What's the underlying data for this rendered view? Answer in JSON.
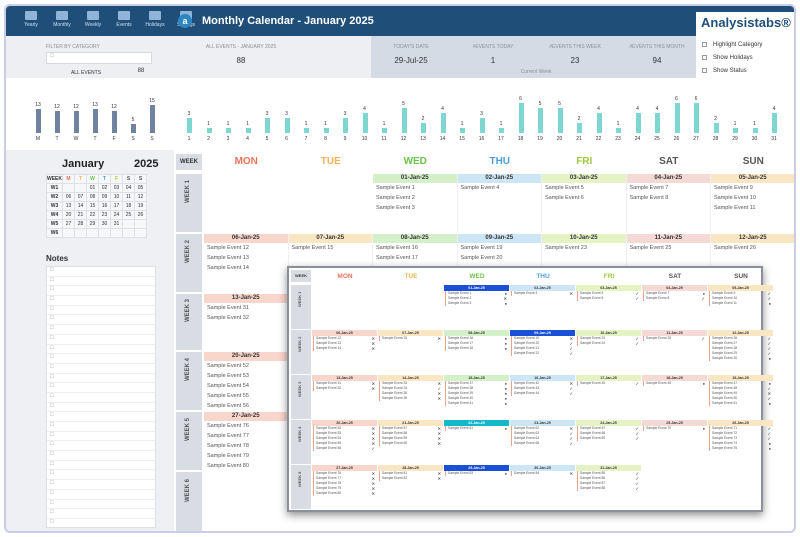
{
  "nav": {
    "items": [
      "Yearly",
      "Monthly",
      "Weekly",
      "Events",
      "Holidays",
      "Settings"
    ]
  },
  "header": {
    "title": "Monthly Calendar - January 2025",
    "brand": "Analysistabs®",
    "logo_letter": "a"
  },
  "filter": {
    "category_label": "FILTER BY CATEGORY",
    "all_events_label": "ALL EVENTS",
    "all_events_value": "88",
    "month_events_label": "ALL EVENTS - JANUARY 2025",
    "month_events_value": "88",
    "today_label": "TODAY'S DATE",
    "today_value": "29-Jul-25",
    "events_today_label": "#EVENTS TODAY",
    "events_today_value": "1",
    "events_week_label": "#EVENTS THIS WEEK",
    "events_week_value": "23",
    "events_month_label": "#EVENTS THIS MONTH",
    "events_month_value": "94",
    "current_week": "Current Week"
  },
  "options": [
    "Highlight Category",
    "Show Holidays",
    "Show Status"
  ],
  "weekday_chart": {
    "values": [
      13,
      12,
      12,
      13,
      12,
      5,
      15
    ],
    "labels": [
      "M",
      "T",
      "W",
      "T",
      "F",
      "S",
      "S"
    ]
  },
  "daily_chart": {
    "values": [
      3,
      1,
      1,
      1,
      3,
      3,
      1,
      1,
      3,
      4,
      1,
      5,
      2,
      4,
      1,
      3,
      1,
      6,
      5,
      5,
      2,
      4,
      1,
      4,
      4,
      6,
      6,
      2,
      1,
      1,
      4
    ],
    "labels": [
      "1",
      "2",
      "3",
      "4",
      "5",
      "6",
      "7",
      "8",
      "9",
      "10",
      "11",
      "12",
      "13",
      "14",
      "15",
      "16",
      "17",
      "18",
      "19",
      "20",
      "21",
      "22",
      "23",
      "24",
      "25",
      "26",
      "27",
      "28",
      "29",
      "30",
      "31"
    ]
  },
  "mini": {
    "month": "January",
    "year": "2025",
    "header": [
      "WEEK",
      "M",
      "T",
      "W",
      "T",
      "F",
      "S",
      "S"
    ],
    "rows": [
      [
        "W1",
        "",
        "",
        "01",
        "02",
        "03",
        "04",
        "05"
      ],
      [
        "W2",
        "06",
        "07",
        "08",
        "09",
        "10",
        "11",
        "12"
      ],
      [
        "W3",
        "13",
        "14",
        "15",
        "16",
        "17",
        "18",
        "19"
      ],
      [
        "W4",
        "20",
        "21",
        "22",
        "23",
        "24",
        "25",
        "26"
      ],
      [
        "W5",
        "27",
        "28",
        "29",
        "30",
        "31",
        "",
        ""
      ],
      [
        "W6",
        "",
        "",
        "",
        "",
        "",
        "",
        ""
      ]
    ]
  },
  "notes": {
    "title": "Notes"
  },
  "calendar": {
    "week_label": "WEEK",
    "days": [
      "MON",
      "TUE",
      "WED",
      "THU",
      "FRI",
      "SAT",
      "SUN"
    ],
    "weeks": [
      "WEEK 1",
      "WEEK 2",
      "WEEK 3",
      "WEEK 4",
      "WEEK 5",
      "WEEK 6"
    ],
    "cells": [
      {
        "w": 0,
        "d": 2,
        "date": "01-Jan-25",
        "ev": [
          "Sample Event 1",
          "Sample Event 2",
          "Sample Event 3"
        ]
      },
      {
        "w": 0,
        "d": 3,
        "date": "02-Jan-25",
        "ev": [
          "Sample Event 4"
        ]
      },
      {
        "w": 0,
        "d": 4,
        "date": "03-Jan-25",
        "ev": [
          "Sample Event 5",
          "Sample Event 6"
        ]
      },
      {
        "w": 0,
        "d": 5,
        "date": "04-Jan-25",
        "ev": [
          "Sample Event 7",
          "Sample Event 8"
        ]
      },
      {
        "w": 0,
        "d": 6,
        "date": "05-Jan-25",
        "ev": [
          "Sample Event 9",
          "Sample Event 10",
          "Sample Event 11"
        ]
      },
      {
        "w": 1,
        "d": 0,
        "date": "06-Jan-25",
        "ev": [
          "Sample Event 12",
          "Sample Event 13",
          "Sample Event 14"
        ]
      },
      {
        "w": 1,
        "d": 1,
        "date": "07-Jan-25",
        "ev": [
          "Sample Event 15"
        ]
      },
      {
        "w": 1,
        "d": 2,
        "date": "08-Jan-25",
        "ev": [
          "Sample Event 16",
          "Sample Event 17"
        ]
      },
      {
        "w": 1,
        "d": 3,
        "date": "09-Jan-25",
        "ev": [
          "Sample Event 19",
          "Sample Event 20"
        ]
      },
      {
        "w": 1,
        "d": 4,
        "date": "10-Jan-25",
        "ev": [
          "Sample Event 23"
        ]
      },
      {
        "w": 1,
        "d": 5,
        "date": "11-Jan-25",
        "ev": [
          "Sample Event 25"
        ]
      },
      {
        "w": 1,
        "d": 6,
        "date": "12-Jan-25",
        "ev": [
          "Sample Event 26"
        ]
      },
      {
        "w": 2,
        "d": 0,
        "date": "13-Jan-25",
        "ev": [
          "Sample Event 31",
          "Sample Event 32"
        ]
      },
      {
        "w": 3,
        "d": 0,
        "date": "20-Jan-25",
        "ev": [
          "Sample Event 52",
          "Sample Event 53",
          "Sample Event 54",
          "Sample Event 55",
          "Sample Event 56"
        ]
      },
      {
        "w": 4,
        "d": 0,
        "date": "27-Jan-25",
        "ev": [
          "Sample Event 76",
          "Sample Event 77",
          "Sample Event 78",
          "Sample Event 79",
          "Sample Event 80"
        ]
      }
    ]
  },
  "popup": {
    "days": [
      "MON",
      "TUE",
      "WED",
      "THU",
      "FRI",
      "SAT",
      "SUN"
    ],
    "weeks": [
      "WEEK 1",
      "WEEK 2",
      "WEEK 3",
      "WEEK 4",
      "WEEK 5"
    ],
    "cells": [
      {
        "w": 0,
        "d": 2,
        "date": "01-Jan-25",
        "ev": [
          "Sample Event 1",
          "Sample Event 2",
          "Sample Event 3"
        ],
        "st": [
          "●",
          "✕",
          "●"
        ]
      },
      {
        "w": 0,
        "d": 3,
        "date": "02-Jan-25",
        "ev": [
          "Sample Event 4"
        ],
        "st": [
          "✕"
        ]
      },
      {
        "w": 0,
        "d": 4,
        "date": "03-Jan-25",
        "ev": [
          "Sample Event 5",
          "Sample Event 6"
        ],
        "st": [
          "✓",
          "✓"
        ]
      },
      {
        "w": 0,
        "d": 5,
        "date": "04-Jan-25",
        "ev": [
          "Sample Event 7",
          "Sample Event 8"
        ],
        "st": [
          "●",
          "✓"
        ]
      },
      {
        "w": 0,
        "d": 6,
        "date": "05-Jan-25",
        "ev": [
          "Sample Event 9",
          "Sample Event 10",
          "Sample Event 11"
        ],
        "st": [
          "✓",
          "✓",
          "●"
        ]
      },
      {
        "w": 1,
        "d": 0,
        "date": "06-Jan-25",
        "ev": [
          "Sample Event 12",
          "Sample Event 13",
          "Sample Event 14"
        ],
        "st": [
          "✕",
          "✕",
          "✕"
        ]
      },
      {
        "w": 1,
        "d": 1,
        "date": "07-Jan-25",
        "ev": [
          "Sample Event 15"
        ],
        "st": [
          "✕"
        ]
      },
      {
        "w": 1,
        "d": 2,
        "date": "08-Jan-25",
        "ev": [
          "Sample Event 16",
          "Sample Event 17",
          "Sample Event 18"
        ],
        "st": [
          "●",
          "●",
          "●"
        ]
      },
      {
        "w": 1,
        "d": 3,
        "date": "09-Jan-25",
        "ev": [
          "Sample Event 19",
          "Sample Event 20",
          "Sample Event 21",
          "Sample Event 22"
        ],
        "st": [
          "✕",
          "✓",
          "✓",
          "✓"
        ]
      },
      {
        "w": 1,
        "d": 4,
        "date": "10-Jan-25",
        "ev": [
          "Sample Event 23",
          "Sample Event 24"
        ],
        "st": [
          "✓",
          "✓"
        ]
      },
      {
        "w": 1,
        "d": 5,
        "date": "11-Jan-25",
        "ev": [
          "Sample Event 25"
        ],
        "st": [
          "✓"
        ]
      },
      {
        "w": 1,
        "d": 6,
        "date": "12-Jan-25",
        "ev": [
          "Sample Event 26",
          "Sample Event 27",
          "Sample Event 28",
          "Sample Event 29",
          "Sample Event 30"
        ],
        "st": [
          "✓",
          "✓",
          "✓",
          "✓",
          "●"
        ]
      },
      {
        "w": 2,
        "d": 0,
        "date": "13-Jan-25",
        "ev": [
          "Sample Event 31",
          "Sample Event 32"
        ],
        "st": [
          "✕",
          "✕"
        ]
      },
      {
        "w": 2,
        "d": 1,
        "date": "14-Jan-25",
        "ev": [
          "Sample Event 33",
          "Sample Event 34",
          "Sample Event 35",
          "Sample Event 36"
        ],
        "st": [
          "✕",
          "✓",
          "✕",
          "✕"
        ]
      },
      {
        "w": 2,
        "d": 2,
        "date": "15-Jan-25",
        "ev": [
          "Sample Event 37",
          "Sample Event 38",
          "Sample Event 39",
          "Sample Event 40",
          "Sample Event 41"
        ],
        "st": [
          "●",
          "●",
          "●",
          "●",
          "●"
        ]
      },
      {
        "w": 2,
        "d": 3,
        "date": "16-Jan-25",
        "ev": [
          "Sample Event 42",
          "Sample Event 43",
          "Sample Event 44"
        ],
        "st": [
          "✕",
          "✓",
          "✓"
        ]
      },
      {
        "w": 2,
        "d": 4,
        "date": "17-Jan-25",
        "ev": [
          "Sample Event 45"
        ],
        "st": [
          "✓"
        ]
      },
      {
        "w": 2,
        "d": 5,
        "date": "18-Jan-25",
        "ev": [
          "Sample Event 46"
        ],
        "st": [
          "●"
        ]
      },
      {
        "w": 2,
        "d": 6,
        "date": "19-Jan-25",
        "ev": [
          "Sample Event 47",
          "Sample Event 48",
          "Sample Event 49",
          "Sample Event 50",
          "Sample Event 51"
        ],
        "st": [
          "●",
          "✓",
          "✕",
          "✓",
          "●"
        ]
      },
      {
        "w": 3,
        "d": 0,
        "date": "20-Jan-25",
        "ev": [
          "Sample Event 52",
          "Sample Event 53",
          "Sample Event 54",
          "Sample Event 55",
          "Sample Event 56"
        ],
        "st": [
          "✕",
          "✕",
          "✕",
          "✕",
          "✓"
        ]
      },
      {
        "w": 3,
        "d": 1,
        "date": "21-Jan-25",
        "ev": [
          "Sample Event 57",
          "Sample Event 58",
          "Sample Event 59",
          "Sample Event 60"
        ],
        "st": [
          "✕",
          "✕",
          "✕",
          "✕"
        ]
      },
      {
        "w": 3,
        "d": 2,
        "date": "22-Jan-25",
        "ev": [
          "Sample Event 61"
        ],
        "st": [
          "●"
        ]
      },
      {
        "w": 3,
        "d": 3,
        "date": "23-Jan-25",
        "ev": [
          "Sample Event 62",
          "Sample Event 63",
          "Sample Event 64",
          "Sample Event 65"
        ],
        "st": [
          "✕",
          "✓",
          "✓",
          "✓"
        ]
      },
      {
        "w": 3,
        "d": 4,
        "date": "24-Jan-25",
        "ev": [
          "Sample Event 67",
          "Sample Event 68",
          "Sample Event 69"
        ],
        "st": [
          "✓",
          "✓",
          "✓"
        ]
      },
      {
        "w": 3,
        "d": 5,
        "date": "25-Jan-25",
        "ev": [
          "Sample Event 70"
        ],
        "st": [
          "●"
        ]
      },
      {
        "w": 3,
        "d": 6,
        "date": "26-Jan-25",
        "ev": [
          "Sample Event 71",
          "Sample Event 72",
          "Sample Event 73",
          "Sample Event 74",
          "Sample Event 75"
        ],
        "st": [
          "✓",
          "✓",
          "✓",
          "●",
          "●"
        ]
      },
      {
        "w": 4,
        "d": 0,
        "date": "27-Jan-25",
        "ev": [
          "Sample Event 76",
          "Sample Event 77",
          "Sample Event 78",
          "Sample Event 79",
          "Sample Event 80"
        ],
        "st": [
          "✕",
          "✕",
          "✕",
          "✕",
          "✕"
        ]
      },
      {
        "w": 4,
        "d": 1,
        "date": "28-Jan-25",
        "ev": [
          "Sample Event 81",
          "Sample Event 82"
        ],
        "st": [
          "✕",
          "✕"
        ]
      },
      {
        "w": 4,
        "d": 2,
        "date": "29-Jan-25",
        "ev": [
          "Sample Event 83"
        ],
        "st": [
          "●"
        ]
      },
      {
        "w": 4,
        "d": 3,
        "date": "30-Jan-25",
        "ev": [
          "Sample Event 84"
        ],
        "st": [
          "✕"
        ]
      },
      {
        "w": 4,
        "d": 4,
        "date": "31-Jan-25",
        "ev": [
          "Sample Event 85",
          "Sample Event 86",
          "Sample Event 87",
          "Sample Event 88"
        ],
        "st": [
          "✓",
          "✓",
          "✓",
          "✓"
        ]
      }
    ]
  },
  "colors": {
    "header": "#1f4e79",
    "mon": "#e8735a",
    "tue": "#f0b35a",
    "wed": "#6cc24a",
    "thu": "#4a9fd8",
    "fri": "#a0c940",
    "sat": "#555555",
    "sun": "#555555"
  }
}
